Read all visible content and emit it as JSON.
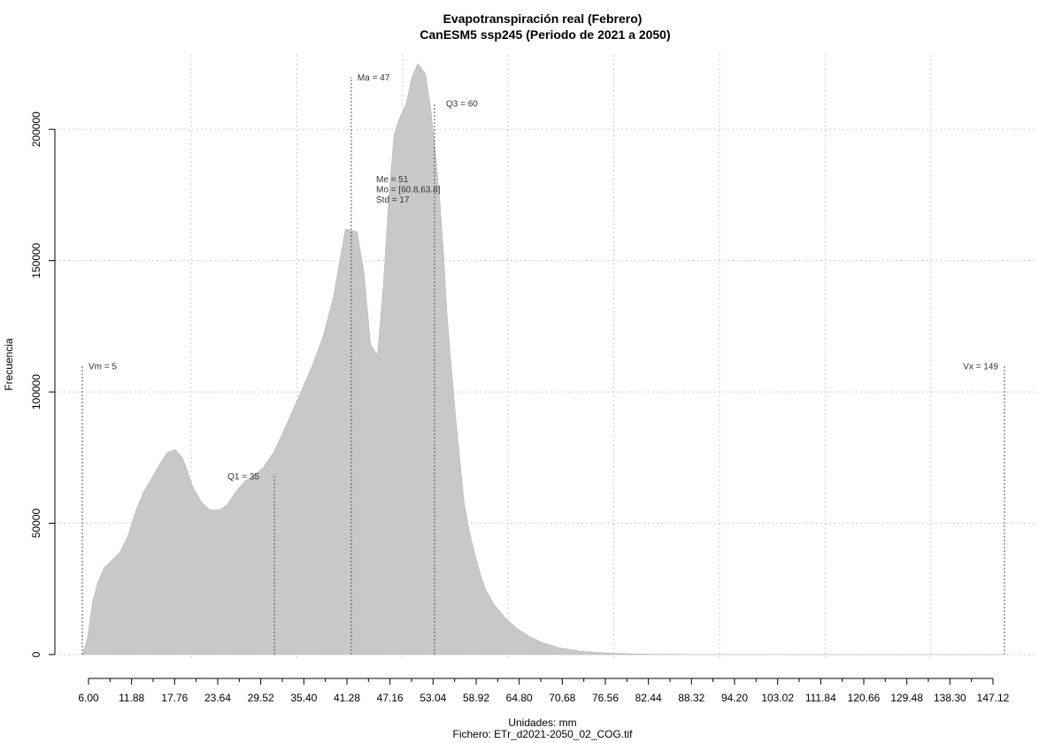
{
  "chart_data": {
    "type": "area",
    "title": "Evapotranspiración real (Febrero)",
    "subtitle": "CanESM5 ssp245 (Periodo de 2021 a 2050)",
    "xlabel": "Unidades: mm",
    "ylabel": "Frecuencia",
    "footer": "Fichero: ETr_d2021-2050_02_COG.tif",
    "xlim": [
      5,
      149
    ],
    "ylim": [
      0,
      225000
    ],
    "y_ticks": [
      0,
      50000,
      100000,
      150000,
      200000
    ],
    "y_tick_labels": [
      "0",
      "50000",
      "100000",
      "150000",
      "200000"
    ],
    "x_tick_labels": [
      "6.00",
      "11.88",
      "17.76",
      "23.64",
      "29.52",
      "35.40",
      "41.28",
      "47.16",
      "53.04",
      "58.92",
      "64.80",
      "70.68",
      "76.56",
      "82.44",
      "88.32",
      "94.20",
      "103.02",
      "111.84",
      "120.66",
      "129.48",
      "138.30",
      "147.12"
    ],
    "grid": true,
    "series": [
      {
        "x": [
          5,
          5.8,
          6.6,
          7.5,
          8.4,
          9.7,
          10.9,
          12.1,
          13.4,
          14.6,
          15.8,
          17.0,
          18.3,
          19.5,
          20.6,
          21.4,
          22.2,
          23.6,
          24.9,
          26.4,
          27.6,
          29.0,
          30.4,
          31.7,
          33.2,
          34.9,
          36.8,
          38.8,
          40.9,
          42.6,
          44.2,
          46.1,
          47.9,
          49.0,
          50.0,
          51.1,
          52.0,
          52.9,
          53.7,
          54.5,
          55.6,
          56.5,
          57.4,
          58.6,
          59.4,
          60.1,
          60.8,
          61.4,
          61.9,
          62.6,
          63.3,
          64.0,
          64.6,
          65.4,
          66.2,
          67.0,
          67.9,
          69.3,
          71.0,
          72.8,
          74.7,
          76.8,
          79.6,
          82.9,
          86.6,
          90.7,
          94.9,
          99.9,
          104.9,
          120,
          149
        ],
        "y": [
          0,
          6000,
          20000,
          28000,
          33000,
          36000,
          39000,
          45000,
          55000,
          62000,
          67000,
          72000,
          77000,
          78000,
          75000,
          70000,
          64000,
          58000,
          55000,
          55000,
          57000,
          62000,
          66000,
          68000,
          71000,
          77000,
          87000,
          98000,
          110000,
          121000,
          136000,
          162000,
          161000,
          145000,
          118000,
          114000,
          140000,
          175000,
          198000,
          204000,
          210000,
          220000,
          225000,
          221000,
          208000,
          192000,
          173000,
          153000,
          131000,
          110000,
          90000,
          73000,
          58000,
          47000,
          39000,
          32000,
          25000,
          19000,
          14000,
          10000,
          7000,
          4500,
          2500,
          1200,
          600,
          250,
          120,
          50,
          20,
          0,
          0
        ]
      }
    ],
    "annotations": [
      {
        "label": "Vm = 5",
        "x": 5,
        "y_top": 110000
      },
      {
        "label": "Q1 = 35",
        "x": 35,
        "y_top": 68000
      },
      {
        "label": "Ma = 47",
        "x": 47,
        "y_top": 220000
      },
      {
        "label": "Q3 = 60",
        "x": 60,
        "y_top": 210000
      },
      {
        "label": "Vx = 149",
        "x": 149,
        "y_top": 110000
      }
    ],
    "stats_box": {
      "lines": [
        "Me = 51",
        "Mo = [60.8,63.8]",
        "Std = 17"
      ]
    },
    "colors": {
      "fill": "#c8c8c8",
      "grid": "#cccccc",
      "ann_line": "#555555"
    }
  }
}
